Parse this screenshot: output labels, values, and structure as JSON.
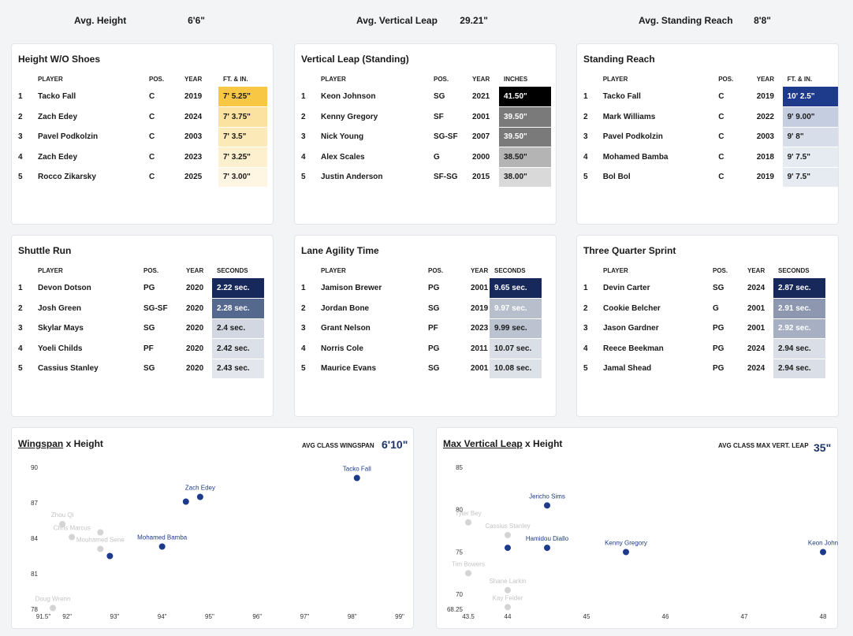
{
  "badges": [
    {
      "label": "Avg. Height",
      "value": "6'6\"",
      "bg": "#f8c845",
      "fg": "#222222"
    },
    {
      "label": "Avg. Vertical Leap",
      "value": "29.21\"",
      "bg": "#000000",
      "fg": "#ffffff"
    },
    {
      "label": "Avg. Standing Reach",
      "value": "8'8\"",
      "bg": "#1e3a8a",
      "fg": "#ffffff"
    }
  ],
  "tables": [
    {
      "title": "Height W/O Shoes",
      "headers": [
        "PLAYER",
        "POS.",
        "YEAR",
        "FT. & IN."
      ],
      "rows": [
        {
          "rank": "1",
          "player": "Tacko Fall",
          "pos": "C",
          "year": "2019",
          "value": "7' 5.25\"",
          "bg": "#f8c845",
          "fg": "#1a1a1a"
        },
        {
          "rank": "2",
          "player": "Zach Edey",
          "pos": "C",
          "year": "2024",
          "value": "7' 3.75\"",
          "bg": "#fbe2a0",
          "fg": "#1a1a1a"
        },
        {
          "rank": "3",
          "player": "Pavel Podkolzin",
          "pos": "C",
          "year": "2003",
          "value": "7' 3.5\"",
          "bg": "#fce9b8",
          "fg": "#1a1a1a"
        },
        {
          "rank": "4",
          "player": "Zach Edey",
          "pos": "C",
          "year": "2023",
          "value": "7' 3.25\"",
          "bg": "#fdf0cf",
          "fg": "#1a1a1a"
        },
        {
          "rank": "5",
          "player": "Rocco Zikarsky",
          "pos": "C",
          "year": "2025",
          "value": "7' 3.00\"",
          "bg": "#fef6e3",
          "fg": "#1a1a1a"
        }
      ]
    },
    {
      "title": "Vertical Leap (Standing)",
      "headers": [
        "PLAYER",
        "POS.",
        "YEAR",
        "INCHES"
      ],
      "rows": [
        {
          "rank": "1",
          "player": "Keon Johnson",
          "pos": "SG",
          "year": "2021",
          "value": "41.50\"",
          "bg": "#000000",
          "fg": "#ffffff"
        },
        {
          "rank": "2",
          "player": "Kenny Gregory",
          "pos": "SF",
          "year": "2001",
          "value": "39.50\"",
          "bg": "#7a7a7a",
          "fg": "#ffffff"
        },
        {
          "rank": "3",
          "player": "Nick Young",
          "pos": "SG-SF",
          "year": "2007",
          "value": "39.50\"",
          "bg": "#7a7a7a",
          "fg": "#ffffff"
        },
        {
          "rank": "4",
          "player": "Alex Scales",
          "pos": "G",
          "year": "2000",
          "value": "38.50\"",
          "bg": "#b4b4b4",
          "fg": "#1a1a1a"
        },
        {
          "rank": "5",
          "player": "Justin Anderson",
          "pos": "SF-SG",
          "year": "2015",
          "value": "38.00\"",
          "bg": "#d9d9d9",
          "fg": "#1a1a1a"
        }
      ]
    },
    {
      "title": "Standing Reach",
      "headers": [
        "PLAYER",
        "POS.",
        "YEAR",
        "FT. & IN."
      ],
      "rows": [
        {
          "rank": "1",
          "player": "Tacko Fall",
          "pos": "C",
          "year": "2019",
          "value": "10' 2.5\"",
          "bg": "#1e3a8a",
          "fg": "#ffffff"
        },
        {
          "rank": "2",
          "player": "Mark Williams",
          "pos": "C",
          "year": "2022",
          "value": "9' 9.00\"",
          "bg": "#c5cde0",
          "fg": "#1a1a1a"
        },
        {
          "rank": "3",
          "player": "Pavel Podkolzin",
          "pos": "C",
          "year": "2003",
          "value": "9' 8\"",
          "bg": "#d8dee9",
          "fg": "#1a1a1a"
        },
        {
          "rank": "4",
          "player": "Mohamed Bamba",
          "pos": "C",
          "year": "2018",
          "value": "9' 7.5\"",
          "bg": "#e6eaf1",
          "fg": "#1a1a1a"
        },
        {
          "rank": "5",
          "player": "Bol Bol",
          "pos": "C",
          "year": "2019",
          "value": "9' 7.5\"",
          "bg": "#e6eaf1",
          "fg": "#1a1a1a"
        }
      ]
    },
    {
      "title": "Shuttle Run",
      "headers": [
        "PLAYER",
        "POS.",
        "YEAR",
        "SECONDS"
      ],
      "rows": [
        {
          "rank": "1",
          "player": "Devon Dotson",
          "pos": "PG",
          "year": "2020",
          "value": "2.22 sec.",
          "bg": "#17285a",
          "fg": "#ffffff"
        },
        {
          "rank": "2",
          "player": "Josh Green",
          "pos": "SG-SF",
          "year": "2020",
          "value": "2.28 sec.",
          "bg": "#55698f",
          "fg": "#ffffff"
        },
        {
          "rank": "3",
          "player": "Skylar Mays",
          "pos": "SG",
          "year": "2020",
          "value": "2.4 sec.",
          "bg": "#d2d7e1",
          "fg": "#1a1a1a"
        },
        {
          "rank": "4",
          "player": "Yoeli Childs",
          "pos": "PF",
          "year": "2020",
          "value": "2.42 sec.",
          "bg": "#dce0e8",
          "fg": "#1a1a1a"
        },
        {
          "rank": "5",
          "player": "Cassius Stanley",
          "pos": "SG",
          "year": "2020",
          "value": "2.43 sec.",
          "bg": "#e3e6ec",
          "fg": "#1a1a1a"
        }
      ]
    },
    {
      "title": "Lane Agility Time",
      "headers": [
        "PLAYER",
        "POS.",
        "YEAR",
        "SECONDS"
      ],
      "rows": [
        {
          "rank": "1",
          "player": "Jamison Brewer",
          "pos": "PG",
          "year": "2001",
          "value": "9.65 sec.",
          "bg": "#17285a",
          "fg": "#ffffff"
        },
        {
          "rank": "2",
          "player": "Jordan Bone",
          "pos": "SG",
          "year": "2019",
          "value": "9.97 sec.",
          "bg": "#b8bfcc",
          "fg": "#ffffff"
        },
        {
          "rank": "3",
          "player": "Grant Nelson",
          "pos": "PF",
          "year": "2023",
          "value": "9.99 sec.",
          "bg": "#bcc3d0",
          "fg": "#1a1a1a"
        },
        {
          "rank": "4",
          "player": "Norris Cole",
          "pos": "PG",
          "year": "2011",
          "value": "10.07 sec.",
          "bg": "#dadee6",
          "fg": "#1a1a1a"
        },
        {
          "rank": "5",
          "player": "Maurice Evans",
          "pos": "SG",
          "year": "2001",
          "value": "10.08 sec.",
          "bg": "#dde1e8",
          "fg": "#1a1a1a"
        }
      ]
    },
    {
      "title": "Three Quarter Sprint",
      "headers": [
        "PLAYER",
        "POS.",
        "YEAR",
        "SECONDS"
      ],
      "rows": [
        {
          "rank": "1",
          "player": "Devin Carter",
          "pos": "SG",
          "year": "2024",
          "value": "2.87 sec.",
          "bg": "#17285a",
          "fg": "#ffffff"
        },
        {
          "rank": "2",
          "player": "Cookie Belcher",
          "pos": "G",
          "year": "2001",
          "value": "2.91 sec.",
          "bg": "#8d98b0",
          "fg": "#ffffff"
        },
        {
          "rank": "3",
          "player": "Jason Gardner",
          "pos": "PG",
          "year": "2001",
          "value": "2.92 sec.",
          "bg": "#a7b0c3",
          "fg": "#ffffff"
        },
        {
          "rank": "4",
          "player": "Reece Beekman",
          "pos": "PG",
          "year": "2024",
          "value": "2.94 sec.",
          "bg": "#dadee6",
          "fg": "#1a1a1a"
        },
        {
          "rank": "5",
          "player": "Jamal Shead",
          "pos": "PG",
          "year": "2024",
          "value": "2.94 sec.",
          "bg": "#dadee6",
          "fg": "#1a1a1a"
        }
      ]
    }
  ],
  "chart_data": [
    {
      "type": "scatter",
      "title_underlined": "Wingspan",
      "title_rest": " x Height",
      "avg_label": "AVG CLASS WINGSPAN",
      "avg_value": "6'10\"",
      "x_ticks": [
        "91.5\"",
        "92\"",
        "93\"",
        "94\"",
        "95\"",
        "96\"",
        "97\"",
        "98\"",
        "99\""
      ],
      "x_tick_values": [
        91.5,
        92,
        93,
        94,
        95,
        96,
        97,
        98,
        99
      ],
      "y_ticks": [
        "78",
        "81",
        "84",
        "87",
        "90"
      ],
      "y_tick_values": [
        78,
        81,
        84,
        87,
        90
      ],
      "xlim": [
        91.5,
        99
      ],
      "ylim": [
        78,
        90
      ],
      "highlight_color": "#1e3a8a",
      "muted_color": "#d4d4d4",
      "points": [
        {
          "x": 98.1,
          "y": 89.1,
          "label": "Tacko Fall",
          "highlight": true
        },
        {
          "x": 94.8,
          "y": 87.5,
          "label": "Zach Edey",
          "highlight": true
        },
        {
          "x": 94.5,
          "y": 87.1,
          "label": "",
          "highlight": true
        },
        {
          "x": 94.0,
          "y": 83.3,
          "label": "Mohamed Bamba",
          "highlight": true
        },
        {
          "x": 92.9,
          "y": 82.5,
          "label": "",
          "highlight": true
        },
        {
          "x": 91.9,
          "y": 85.2,
          "label": "Zhou Qi",
          "highlight": false
        },
        {
          "x": 92.1,
          "y": 84.1,
          "label": "Chris Marcus",
          "highlight": false
        },
        {
          "x": 92.7,
          "y": 84.5,
          "label": "",
          "highlight": false
        },
        {
          "x": 92.7,
          "y": 83.1,
          "label": "Mouhamed Sene",
          "highlight": false
        },
        {
          "x": 91.7,
          "y": 78.1,
          "label": "Doug Wrenn",
          "highlight": false
        }
      ]
    },
    {
      "type": "scatter",
      "title_underlined": "Max Vertical Leap",
      "title_rest": " x Height",
      "avg_label": "AVG CLASS MAX VERT. LEAP",
      "avg_value": "35\"",
      "x_ticks": [
        "43.5",
        "44",
        "45",
        "46",
        "47",
        "48"
      ],
      "x_tick_values": [
        43.5,
        44,
        45,
        46,
        47,
        48
      ],
      "y_ticks": [
        "68.25",
        "70",
        "75",
        "80",
        "85"
      ],
      "y_tick_values": [
        68.25,
        70,
        75,
        80,
        85
      ],
      "xlim": [
        43.5,
        48
      ],
      "ylim": [
        68.25,
        85
      ],
      "highlight_color": "#1e3a8a",
      "muted_color": "#d4d4d4",
      "points": [
        {
          "x": 44.5,
          "y": 80.5,
          "label": "Jericho Sims",
          "highlight": true
        },
        {
          "x": 44.0,
          "y": 75.5,
          "label": "",
          "highlight": true
        },
        {
          "x": 44.5,
          "y": 75.5,
          "label": "Hamidou Diallo",
          "highlight": true
        },
        {
          "x": 45.5,
          "y": 75.0,
          "label": "Kenny Gregory",
          "highlight": true
        },
        {
          "x": 48.0,
          "y": 75.0,
          "label": "Keon John",
          "highlight": true
        },
        {
          "x": 43.5,
          "y": 78.5,
          "label": "Tyler Bey",
          "highlight": false
        },
        {
          "x": 44.0,
          "y": 77.0,
          "label": "Cassius Stanley",
          "highlight": false
        },
        {
          "x": 43.5,
          "y": 72.5,
          "label": "Tim Bowers",
          "highlight": false
        },
        {
          "x": 44.0,
          "y": 70.5,
          "label": "Shane Larkin",
          "highlight": false
        },
        {
          "x": 44.0,
          "y": 68.5,
          "label": "Kay Felder",
          "highlight": false
        }
      ]
    }
  ]
}
